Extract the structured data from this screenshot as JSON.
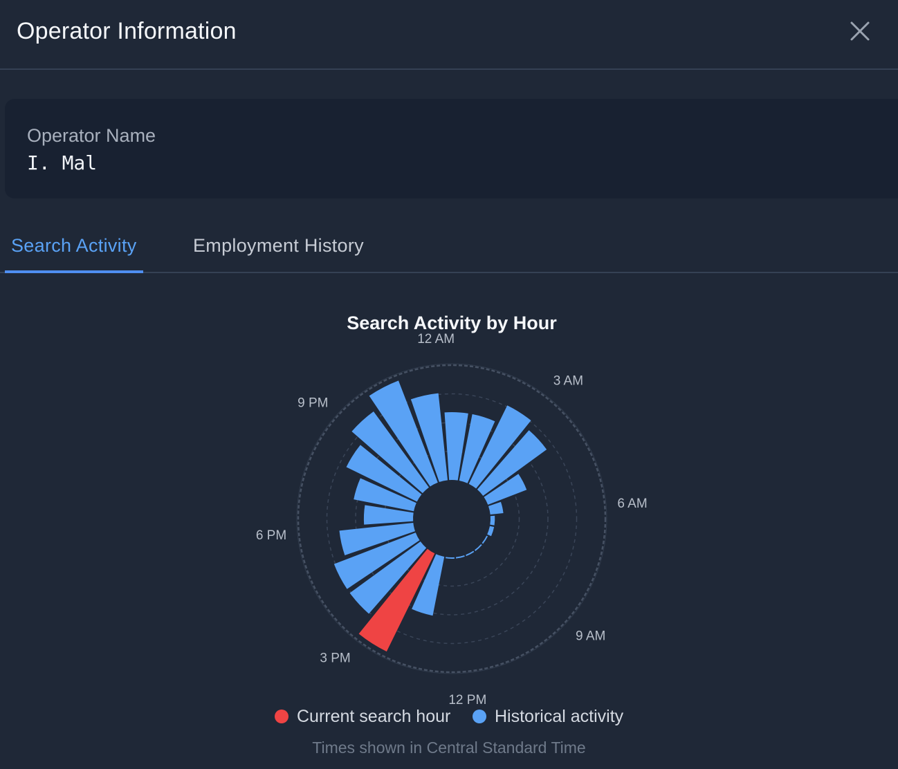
{
  "dialog": {
    "title": "Operator Information",
    "close_icon": "close-icon"
  },
  "operator": {
    "label": "Operator Name",
    "value": "I. Mal"
  },
  "tabs": [
    {
      "label": "Search Activity",
      "active": true
    },
    {
      "label": "Employment History",
      "active": false
    }
  ],
  "legend": {
    "current": "Current search hour",
    "historical": "Historical activity"
  },
  "footnote": "Times shown in Central Standard Time",
  "colors": {
    "background": "#1f2837",
    "card": "#182131",
    "accent": "#4f8ef0",
    "historical": "#5aa2f5",
    "current": "#ef4444"
  },
  "chart_data": {
    "type": "polar-bar",
    "title": "Search Activity by Hour",
    "angle_labels": [
      "12 AM",
      "3 AM",
      "6 AM",
      "9 AM",
      "12 PM",
      "3 PM",
      "6 PM",
      "9 PM"
    ],
    "hours": [
      0,
      1,
      2,
      3,
      4,
      5,
      6,
      7,
      8,
      9,
      10,
      11,
      12,
      13,
      14,
      15,
      16,
      17,
      18,
      19,
      20,
      21,
      22,
      23
    ],
    "values": [
      62,
      62,
      80,
      72,
      38,
      12,
      4,
      4,
      1,
      1,
      1,
      1,
      1,
      55,
      100,
      80,
      80,
      68,
      45,
      56,
      72,
      86,
      100,
      80
    ],
    "current_hour": 14,
    "series": [
      {
        "name": "Current search hour",
        "color": "#ef4444"
      },
      {
        "name": "Historical activity",
        "color": "#5aa2f5"
      }
    ],
    "grid": true
  }
}
